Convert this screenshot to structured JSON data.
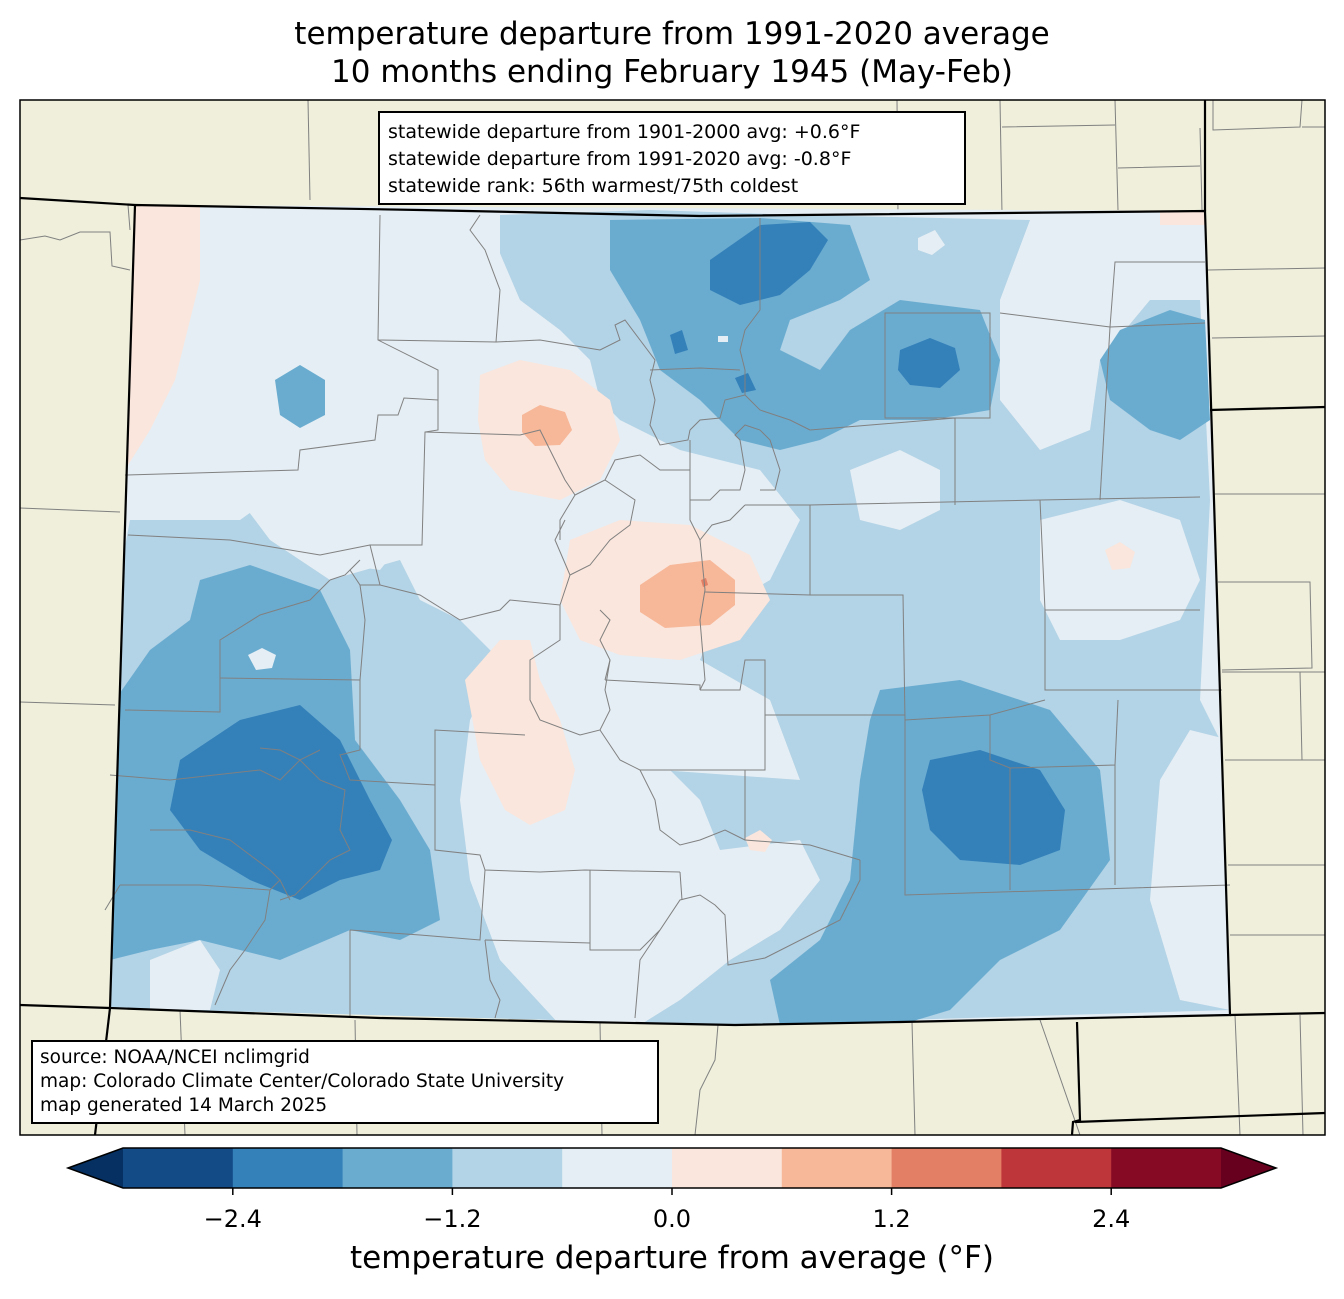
{
  "title": {
    "line1": "temperature departure from 1991-2020 average",
    "line2": "10 months ending February 1945 (May-Feb)"
  },
  "stats": {
    "line1": "statewide departure from 1901-2000 avg: +0.6°F",
    "line2": "statewide departure from 1991-2020 avg: -0.8°F",
    "line3": "statewide rank: 56th warmest/75th coldest"
  },
  "source": {
    "line1": "source: NOAA/NCEI nclimgrid",
    "line2": "map: Colorado Climate Center/Colorado State University",
    "line3": "map generated 14 March 2025"
  },
  "colorbar": {
    "label": "temperature departure from average (°F)",
    "ticks": [
      "−2.4",
      "−1.2",
      "0.0",
      "1.2",
      "2.4"
    ],
    "tick_values": [
      -2.4,
      -1.2,
      0.0,
      1.2,
      2.4
    ],
    "bounds": [
      -3.0,
      3.0
    ],
    "step": 0.6,
    "colors": [
      "#134b87",
      "#3480b9",
      "#6aacd0",
      "#b3d3e6",
      "#e5eef4",
      "#fae6dc",
      "#f7b799",
      "#e27f64",
      "#bf363a",
      "#870a24"
    ],
    "under_color": "#053061",
    "over_color": "#67001f"
  },
  "map_colors": {
    "land": "#efefdc",
    "state_border": "#000000",
    "county_border": "#808080"
  }
}
